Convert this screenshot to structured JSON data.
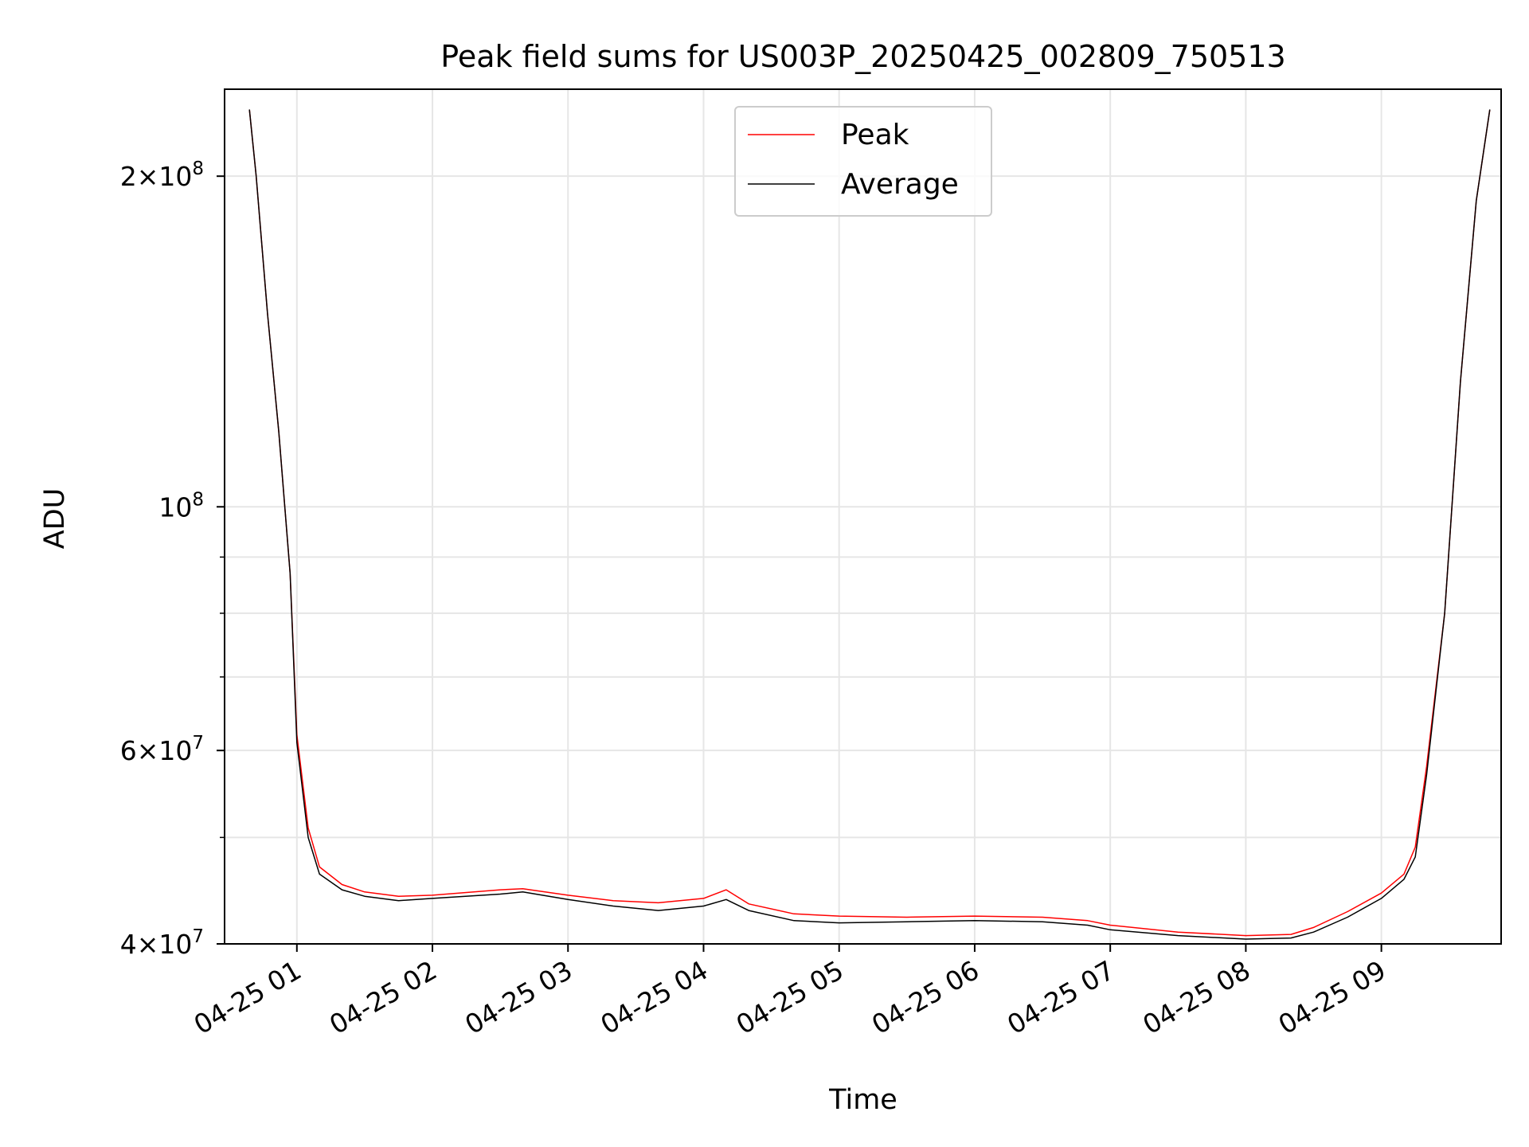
{
  "chart_data": {
    "type": "line",
    "title": "Peak field sums for US003P_20250425_002809_750513",
    "xlabel": "Time",
    "ylabel": "ADU",
    "x_scale": "time",
    "y_scale": "log",
    "xlim": [
      "2025-04-25 00:28",
      "2025-04-25 09:53"
    ],
    "ylim": [
      40000000,
      240000000
    ],
    "x_ticks": [
      "04-25 01",
      "04-25 02",
      "04-25 03",
      "04-25 04",
      "04-25 05",
      "04-25 06",
      "04-25 07",
      "04-25 08",
      "04-25 09"
    ],
    "y_major_ticks": [
      {
        "value": 200000000,
        "mantissa": "2",
        "exponent": "8"
      },
      {
        "value": 100000000,
        "mantissa": "",
        "exponent": "8"
      },
      {
        "value": 60000000,
        "mantissa": "6",
        "exponent": "7"
      },
      {
        "value": 40000000,
        "mantissa": "4",
        "exponent": "7"
      }
    ],
    "y_minor_ticks": [
      50000000,
      70000000,
      80000000,
      90000000
    ],
    "grid": true,
    "legend": "upper center",
    "series": [
      {
        "name": "Peak",
        "color": "#ff0000",
        "x": [
          "2025-04-25 00:39",
          "2025-04-25 00:42",
          "2025-04-25 00:47",
          "2025-04-25 00:52",
          "2025-04-25 00:57",
          "2025-04-25 01:00",
          "2025-04-25 01:05",
          "2025-04-25 01:10",
          "2025-04-25 01:20",
          "2025-04-25 01:30",
          "2025-04-25 01:45",
          "2025-04-25 02:00",
          "2025-04-25 02:30",
          "2025-04-25 02:40",
          "2025-04-25 03:00",
          "2025-04-25 03:20",
          "2025-04-25 03:40",
          "2025-04-25 04:00",
          "2025-04-25 04:10",
          "2025-04-25 04:20",
          "2025-04-25 04:40",
          "2025-04-25 05:00",
          "2025-04-25 05:30",
          "2025-04-25 06:00",
          "2025-04-25 06:30",
          "2025-04-25 06:50",
          "2025-04-25 07:00",
          "2025-04-25 07:30",
          "2025-04-25 08:00",
          "2025-04-25 08:20",
          "2025-04-25 08:30",
          "2025-04-25 08:45",
          "2025-04-25 09:00",
          "2025-04-25 09:10",
          "2025-04-25 09:15",
          "2025-04-25 09:20",
          "2025-04-25 09:28",
          "2025-04-25 09:35",
          "2025-04-25 09:42",
          "2025-04-25 09:48"
        ],
        "y": [
          230000000,
          200000000,
          150000000,
          117000000,
          87000000,
          62000000,
          51000000,
          47000000,
          45300000,
          44600000,
          44200000,
          44300000,
          44800000,
          44900000,
          44300000,
          43800000,
          43600000,
          44000000,
          44800000,
          43500000,
          42600000,
          42400000,
          42300000,
          42400000,
          42300000,
          42000000,
          41600000,
          41000000,
          40700000,
          40800000,
          41400000,
          42800000,
          44500000,
          46300000,
          49000000,
          58000000,
          80000000,
          130000000,
          190000000,
          230000000
        ]
      },
      {
        "name": "Average",
        "color": "#000000",
        "x": [
          "2025-04-25 00:39",
          "2025-04-25 00:42",
          "2025-04-25 00:47",
          "2025-04-25 00:52",
          "2025-04-25 00:57",
          "2025-04-25 01:00",
          "2025-04-25 01:05",
          "2025-04-25 01:10",
          "2025-04-25 01:20",
          "2025-04-25 01:30",
          "2025-04-25 01:45",
          "2025-04-25 02:00",
          "2025-04-25 02:30",
          "2025-04-25 02:40",
          "2025-04-25 03:00",
          "2025-04-25 03:20",
          "2025-04-25 03:40",
          "2025-04-25 04:00",
          "2025-04-25 04:10",
          "2025-04-25 04:20",
          "2025-04-25 04:40",
          "2025-04-25 05:00",
          "2025-04-25 05:30",
          "2025-04-25 06:00",
          "2025-04-25 06:30",
          "2025-04-25 06:50",
          "2025-04-25 07:00",
          "2025-04-25 07:30",
          "2025-04-25 08:00",
          "2025-04-25 08:20",
          "2025-04-25 08:30",
          "2025-04-25 08:45",
          "2025-04-25 09:00",
          "2025-04-25 09:10",
          "2025-04-25 09:15",
          "2025-04-25 09:20",
          "2025-04-25 09:28",
          "2025-04-25 09:35",
          "2025-04-25 09:42",
          "2025-04-25 09:48"
        ],
        "y": [
          230000000,
          200000000,
          150000000,
          117000000,
          87000000,
          61000000,
          50000000,
          46300000,
          44800000,
          44200000,
          43800000,
          44000000,
          44400000,
          44600000,
          43900000,
          43300000,
          42900000,
          43300000,
          43900000,
          42900000,
          42000000,
          41800000,
          41900000,
          42000000,
          41900000,
          41600000,
          41200000,
          40700000,
          40400000,
          40500000,
          41000000,
          42300000,
          44000000,
          45800000,
          48000000,
          57000000,
          80000000,
          130000000,
          190000000,
          230000000
        ]
      }
    ]
  }
}
